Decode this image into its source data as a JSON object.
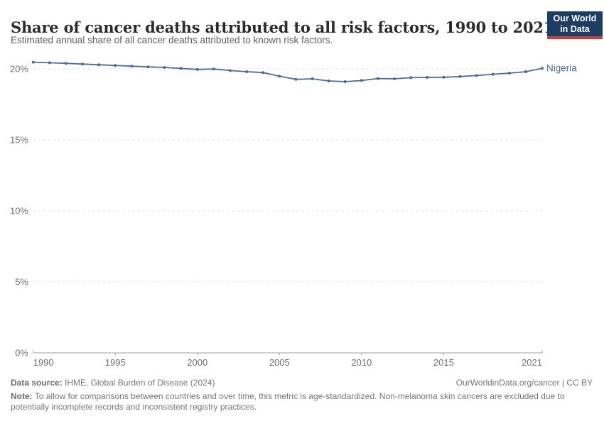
{
  "header": {
    "title": "Share of cancer deaths attributed to all risk factors, 1990 to 2021",
    "subtitle": "Estimated annual share of all cancer deaths attributed to known risk factors.",
    "logo": {
      "line1": "Our World",
      "line2": "in Data",
      "bg_color": "#1d3d63",
      "bar_color": "#d93a34"
    }
  },
  "chart_data": {
    "type": "line",
    "title": "Share of cancer deaths attributed to all risk factors, 1990 to 2021",
    "xlabel": "",
    "ylabel": "",
    "x": [
      1990,
      1991,
      1992,
      1993,
      1994,
      1995,
      1996,
      1997,
      1998,
      1999,
      2000,
      2001,
      2002,
      2003,
      2004,
      2005,
      2006,
      2007,
      2008,
      2009,
      2010,
      2011,
      2012,
      2013,
      2014,
      2015,
      2016,
      2017,
      2018,
      2019,
      2020,
      2021
    ],
    "series": [
      {
        "name": "Nigeria",
        "color": "#4c6a9c",
        "values": [
          20.47,
          20.43,
          20.39,
          20.34,
          20.29,
          20.24,
          20.19,
          20.14,
          20.1,
          20.03,
          19.96,
          19.99,
          19.88,
          19.8,
          19.74,
          19.48,
          19.26,
          19.3,
          19.15,
          19.1,
          19.18,
          19.32,
          19.3,
          19.38,
          19.4,
          19.41,
          19.46,
          19.53,
          19.62,
          19.7,
          19.8,
          20.04
        ]
      }
    ],
    "ylim": [
      0,
      21.35
    ],
    "yticks": [
      {
        "value": 0,
        "label": "0%"
      },
      {
        "value": 5,
        "label": "5%"
      },
      {
        "value": 10,
        "label": "10%"
      },
      {
        "value": 15,
        "label": "15%"
      },
      {
        "value": 20,
        "label": "20%"
      }
    ],
    "xticks": [
      {
        "value": 1990,
        "label": "1990"
      },
      {
        "value": 1995,
        "label": "1995"
      },
      {
        "value": 2000,
        "label": "2000"
      },
      {
        "value": 2005,
        "label": "2005"
      },
      {
        "value": 2010,
        "label": "2010"
      },
      {
        "value": 2015,
        "label": "2015"
      },
      {
        "value": 2021,
        "label": "2021"
      }
    ],
    "grid": "horizontal-dashed",
    "legend_position": "end-of-line",
    "axis_color": "#a0a0a0",
    "gridline_color": "#dcdcdc",
    "tick_label_color": "#6e6e6e"
  },
  "footer": {
    "data_source_label": "Data source:",
    "data_source_value": "IHME, Global Burden of Disease (2024)",
    "license": "OurWorldinData.org/cancer | CC BY",
    "note_label": "Note:",
    "note_value": "To allow for comparisons between countries and over time, this metric is age-standardized. Non-melanoma skin cancers are excluded due to potentially incomplete records and inconsistent registry practices."
  }
}
